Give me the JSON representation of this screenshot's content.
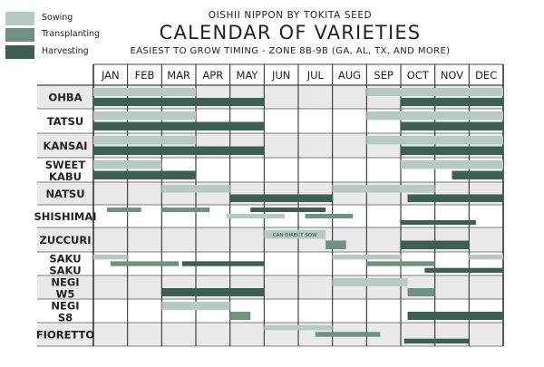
{
  "legend": [
    {
      "label": "Sowing",
      "color": "#b5cbc2"
    },
    {
      "label": "Transplanting",
      "color": "#6f9182"
    },
    {
      "label": "Harvesting",
      "color": "#3d5f51"
    }
  ],
  "header": {
    "brand": "OISHII NIPPON BY TOKITA SEED",
    "title": "CALENDAR OF VARIETIES",
    "subtitle": "EASIEST TO GROW TIMING - ZONE 8B-9B (GA, AL, TX, AND MORE)"
  },
  "chart_data": {
    "type": "gantt",
    "title": "CALENDAR OF VARIETIES",
    "months": [
      "JAN",
      "FEB",
      "MAR",
      "APR",
      "MAY",
      "JUN",
      "JUL",
      "AUG",
      "SEP",
      "OCT",
      "NOV",
      "DEC"
    ],
    "x_unit": "month index, 0 = start of JAN, 12 = end of DEC",
    "phase_colors": {
      "sowing": "#b5cbc2",
      "transplanting": "#6f9182",
      "harvesting": "#3d5f51"
    },
    "rows": [
      {
        "label": "OHBA",
        "bars": [
          {
            "phase": "sowing",
            "lane": 0,
            "start": 0,
            "end": 3
          },
          {
            "phase": "sowing",
            "lane": 0,
            "start": 8,
            "end": 12
          },
          {
            "phase": "harvesting",
            "lane": 1,
            "start": 0,
            "end": 5
          },
          {
            "phase": "harvesting",
            "lane": 1,
            "start": 9,
            "end": 12
          }
        ]
      },
      {
        "label": "TATSU",
        "bars": [
          {
            "phase": "sowing",
            "lane": 0,
            "start": 0,
            "end": 3
          },
          {
            "phase": "sowing",
            "lane": 0,
            "start": 8,
            "end": 12
          },
          {
            "phase": "harvesting",
            "lane": 1,
            "start": 0,
            "end": 5
          },
          {
            "phase": "harvesting",
            "lane": 1,
            "start": 9,
            "end": 12
          }
        ]
      },
      {
        "label": "KANSAI",
        "bars": [
          {
            "phase": "sowing",
            "lane": 0,
            "start": 0,
            "end": 3
          },
          {
            "phase": "sowing",
            "lane": 0,
            "start": 8,
            "end": 12
          },
          {
            "phase": "harvesting",
            "lane": 1,
            "start": 0,
            "end": 5
          },
          {
            "phase": "harvesting",
            "lane": 1,
            "start": 9,
            "end": 12
          }
        ]
      },
      {
        "label": "SWEET KABU",
        "bars": [
          {
            "phase": "sowing",
            "lane": 0,
            "start": 0,
            "end": 2
          },
          {
            "phase": "sowing",
            "lane": 0,
            "start": 9,
            "end": 12
          },
          {
            "phase": "harvesting",
            "lane": 1,
            "start": 0,
            "end": 3
          },
          {
            "phase": "harvesting",
            "lane": 1,
            "start": 10.5,
            "end": 12
          }
        ]
      },
      {
        "label": "NATSU",
        "bars": [
          {
            "phase": "sowing",
            "lane": 0,
            "start": 2,
            "end": 4
          },
          {
            "phase": "sowing",
            "lane": 0,
            "start": 7,
            "end": 10
          },
          {
            "phase": "harvesting",
            "lane": 1,
            "start": 4,
            "end": 7
          },
          {
            "phase": "harvesting",
            "lane": 1,
            "start": 9.2,
            "end": 12
          }
        ]
      },
      {
        "label": "SHISHIMAI",
        "bars": [
          {
            "phase": "transplanting",
            "lane": 0,
            "start": 0.4,
            "end": 1.4
          },
          {
            "phase": "transplanting",
            "lane": 0,
            "start": 2,
            "end": 3.4
          },
          {
            "phase": "harvesting",
            "lane": 0,
            "start": 4.6,
            "end": 6.8
          },
          {
            "phase": "sowing",
            "lane": 1,
            "start": 3.9,
            "end": 5.6
          },
          {
            "phase": "transplanting",
            "lane": 1,
            "start": 6.2,
            "end": 7.6
          },
          {
            "phase": "harvesting",
            "lane": 2,
            "start": 9,
            "end": 11.2
          }
        ]
      },
      {
        "label": "ZUCCURI",
        "bars": [
          {
            "phase": "sowing",
            "lane": 0,
            "start": 5,
            "end": 6.8,
            "annotation": "CAN DIRECT SOW"
          },
          {
            "phase": "transplanting",
            "lane": 1,
            "start": 6.8,
            "end": 7.4
          },
          {
            "phase": "harvesting",
            "lane": 1,
            "start": 9,
            "end": 11
          }
        ]
      },
      {
        "label": "SAKU SAKU",
        "bars": [
          {
            "phase": "sowing",
            "lane": 0,
            "start": 0,
            "end": 1
          },
          {
            "phase": "sowing",
            "lane": 0,
            "start": 7,
            "end": 9
          },
          {
            "phase": "sowing",
            "lane": 0,
            "start": 11,
            "end": 12
          },
          {
            "phase": "transplanting",
            "lane": 1,
            "start": 0.5,
            "end": 2.5
          },
          {
            "phase": "harvesting",
            "lane": 1,
            "start": 2.6,
            "end": 5
          },
          {
            "phase": "transplanting",
            "lane": 1,
            "start": 8,
            "end": 10
          },
          {
            "phase": "harvesting",
            "lane": 2,
            "start": 9.7,
            "end": 12
          }
        ]
      },
      {
        "label": "NEGI W5",
        "bars": [
          {
            "phase": "sowing",
            "lane": 0,
            "start": 7,
            "end": 9.2
          },
          {
            "phase": "transplanting",
            "lane": 1,
            "start": 9.2,
            "end": 10
          },
          {
            "phase": "harvesting",
            "lane": 1,
            "start": 2,
            "end": 5
          }
        ]
      },
      {
        "label": "NEGI S8",
        "bars": [
          {
            "phase": "sowing",
            "lane": 0,
            "start": 2,
            "end": 4
          },
          {
            "phase": "transplanting",
            "lane": 1,
            "start": 4,
            "end": 4.6
          },
          {
            "phase": "harvesting",
            "lane": 1,
            "start": 9.2,
            "end": 12
          }
        ]
      },
      {
        "label": "FIORETTO",
        "bars": [
          {
            "phase": "sowing",
            "lane": 0,
            "start": 5,
            "end": 7
          },
          {
            "phase": "transplanting",
            "lane": 1,
            "start": 6.5,
            "end": 8.4
          },
          {
            "phase": "harvesting",
            "lane": 2,
            "start": 9.1,
            "end": 11
          }
        ]
      }
    ]
  }
}
